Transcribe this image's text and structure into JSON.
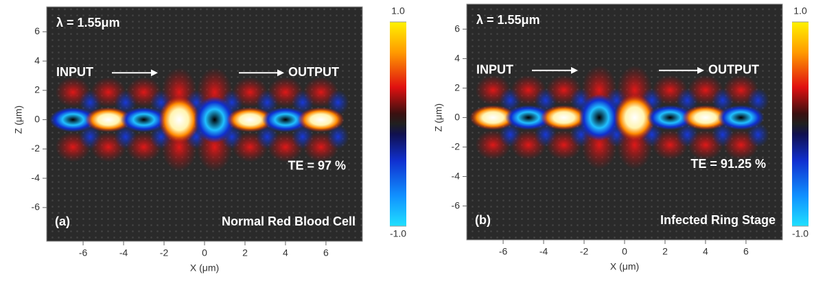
{
  "chart_data": [
    {
      "type": "field",
      "xlabel": "X (μm)",
      "ylabel": "Z (μm)",
      "xlim": [
        -7.8,
        7.8
      ],
      "ylim": [
        -8.3,
        7.7
      ],
      "xticks": [
        -6,
        -4,
        -2,
        0,
        2,
        4,
        6
      ],
      "yticks": [
        -6,
        -4,
        -2,
        0,
        2,
        4,
        6
      ],
      "wavelength": "λ = 1.55μm",
      "input": "INPUT",
      "output": "OUTPUT",
      "te": "TE = 97 %",
      "label": "(a)",
      "caption": "Normal Red Blood Cell",
      "colorbar": {
        "lim": [
          -1,
          1
        ],
        "ticks": [
          {
            "value": 1,
            "label": "1.0"
          },
          {
            "value": -1,
            "label": "-1.0"
          }
        ]
      }
    },
    {
      "type": "field",
      "xlabel": "X (μm)",
      "ylabel": "Z (μm)",
      "xlim": [
        -7.8,
        7.8
      ],
      "ylim": [
        -8.3,
        7.7
      ],
      "xticks": [
        -6,
        -4,
        -2,
        0,
        2,
        4,
        6
      ],
      "yticks": [
        -6,
        -4,
        -2,
        0,
        2,
        4,
        6
      ],
      "wavelength": "λ = 1.55μm",
      "input": "INPUT",
      "output": "OUTPUT",
      "te": "TE = 91.25 %",
      "label": "(b)",
      "caption": "Infected Ring Stage",
      "colorbar": {
        "lim": [
          -1,
          1
        ],
        "ticks": [
          {
            "value": 1,
            "label": "1.0"
          },
          {
            "value": -1,
            "label": "-1.0"
          }
        ]
      }
    }
  ]
}
